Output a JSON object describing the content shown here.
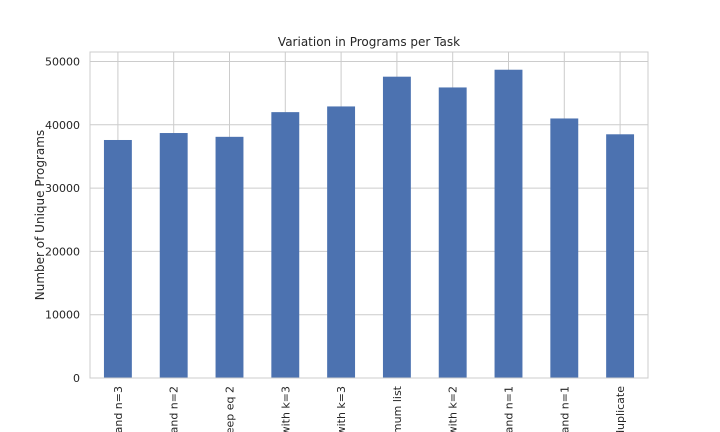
{
  "chart_data": {
    "type": "bar",
    "title": "Variation in Programs per Task",
    "xlabel": "",
    "ylabel": "Number of Unique Programs",
    "ylim": [
      0,
      51500
    ],
    "yticks": [
      0,
      10000,
      20000,
      30000,
      40000,
      50000
    ],
    "grid": true,
    "bar_color": "#4c72b0",
    "grid_color": "#cccccc",
    "categories": [
      "and n=3",
      "and n=2",
      "eep eq 2",
      "with k=3",
      "with k=3",
      "imum list",
      "with k=2",
      "and n=1",
      "and n=1",
      "duplicate"
    ],
    "values": [
      37600,
      38700,
      38100,
      42000,
      42900,
      47600,
      45900,
      48700,
      41000,
      38500
    ]
  }
}
